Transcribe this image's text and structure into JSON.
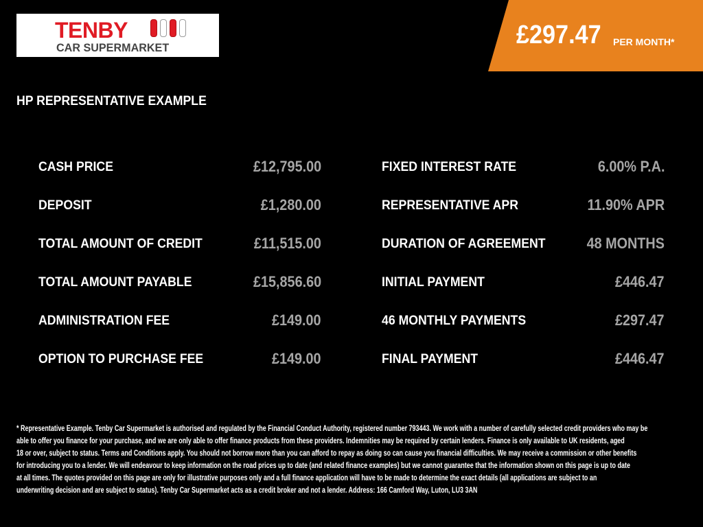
{
  "logo": {
    "line1": "TENBY",
    "line2": "CAR SUPERMARKET"
  },
  "banner": {
    "amount": "£297.47",
    "suffix": "PER MONTH*",
    "color": "#e8821e"
  },
  "title": "HP REPRESENTATIVE EXAMPLE",
  "left": [
    {
      "label": "CASH PRICE",
      "value": "£12,795.00"
    },
    {
      "label": "DEPOSIT",
      "value": "£1,280.00"
    },
    {
      "label": "TOTAL AMOUNT OF CREDIT",
      "value": "£11,515.00"
    },
    {
      "label": "TOTAL AMOUNT PAYABLE",
      "value": "£15,856.60"
    },
    {
      "label": "ADMINISTRATION FEE",
      "value": "£149.00"
    },
    {
      "label": "OPTION TO PURCHASE FEE",
      "value": "£149.00"
    }
  ],
  "right": [
    {
      "label": "FIXED INTEREST RATE",
      "value": "6.00% P.A."
    },
    {
      "label": "REPRESENTATIVE APR",
      "value": "11.90% APR"
    },
    {
      "label": "DURATION OF AGREEMENT",
      "value": "48 MONTHS"
    },
    {
      "label": "INITIAL PAYMENT",
      "value": "£446.47"
    },
    {
      "label": "46 MONTHLY PAYMENTS",
      "value": "£297.47"
    },
    {
      "label": "FINAL PAYMENT",
      "value": "£446.47"
    }
  ],
  "footer": [
    "* Representative Example. Tenby Car Supermarket is authorised and regulated by the Financial Conduct Authority, registered number 793443. We work with a number of carefully selected credit providers who may be",
    "able to offer you finance for your purchase, and we are only able to offer finance products from these providers. Indemnities may be required by certain lenders. Finance is only available to UK residents, aged",
    "18 or over, subject to status. Terms and Conditions apply. You should not borrow more than you can afford to repay as doing so can cause you financial difficulties. We may receive a commission or other benefits",
    "for introducing you to a lender. We will endeavour to keep information on the road prices up to date (and related finance examples) but we cannot guarantee that the information shown on this page is up to date",
    "at all times. The quotes provided on this page are only for illustrative purposes only and a full finance application will have to be made to determine the exact details (all applications are subject to an",
    "underwriting decision and are subject to status). Tenby Car Supermarket acts as a credit broker and not a lender. Address: 166 Camford Way, Luton, LU3 3AN"
  ]
}
